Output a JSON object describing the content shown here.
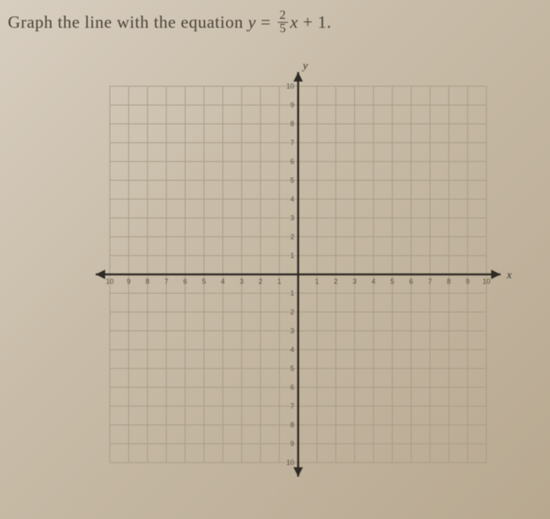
{
  "prompt": {
    "lead": "Graph the line with the equation ",
    "var_y": "y",
    "eq": " = ",
    "frac_num": "2",
    "frac_den": "5",
    "var_x": "x",
    "tail": " + 1."
  },
  "chart": {
    "type": "blank-cartesian-grid",
    "xlim": [
      -10,
      10
    ],
    "ylim": [
      -10,
      10
    ],
    "tick_step": 1,
    "x_axis_label": "x",
    "y_axis_label": "y",
    "grid_color": "#a89c88",
    "axis_color": "#2e2a24",
    "background_color": "transparent",
    "tick_fontsize": 9,
    "axis_label_fontsize": 14,
    "arrowheads": true
  }
}
